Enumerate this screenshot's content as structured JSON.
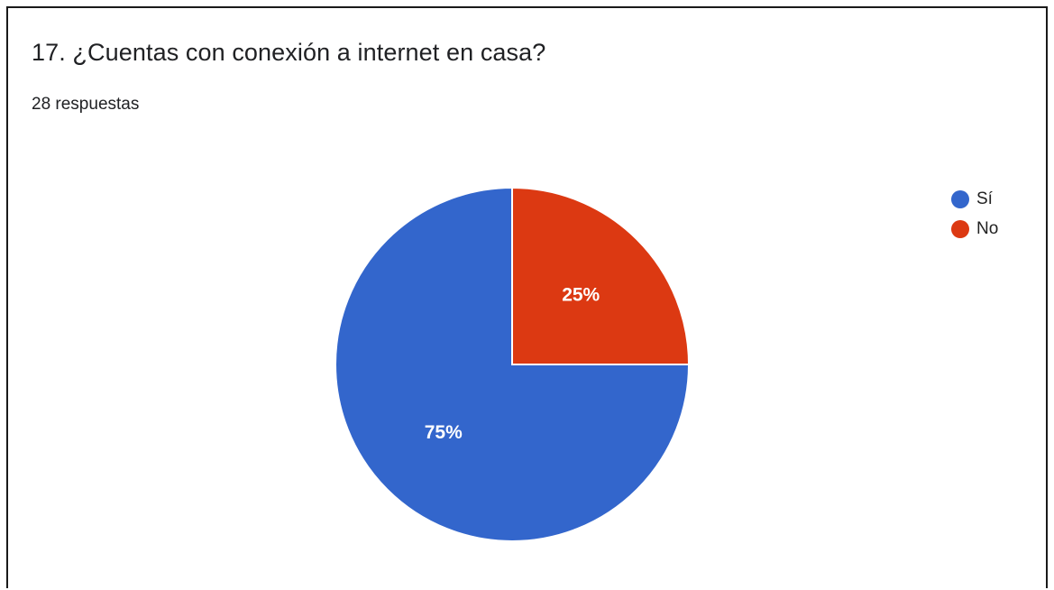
{
  "form": {
    "question_title": "17. ¿Cuentas con conexión a internet en casa?",
    "response_count": "28 respuestas"
  },
  "chart_data": {
    "type": "pie",
    "title": "17. ¿Cuentas con conexión a internet en casa?",
    "categories": [
      "Sí",
      "No"
    ],
    "values": [
      75,
      25
    ],
    "slice_labels": [
      "75%",
      "25%"
    ],
    "colors": [
      "#3366cc",
      "#dc3912"
    ],
    "legend_placement": "top-right"
  }
}
